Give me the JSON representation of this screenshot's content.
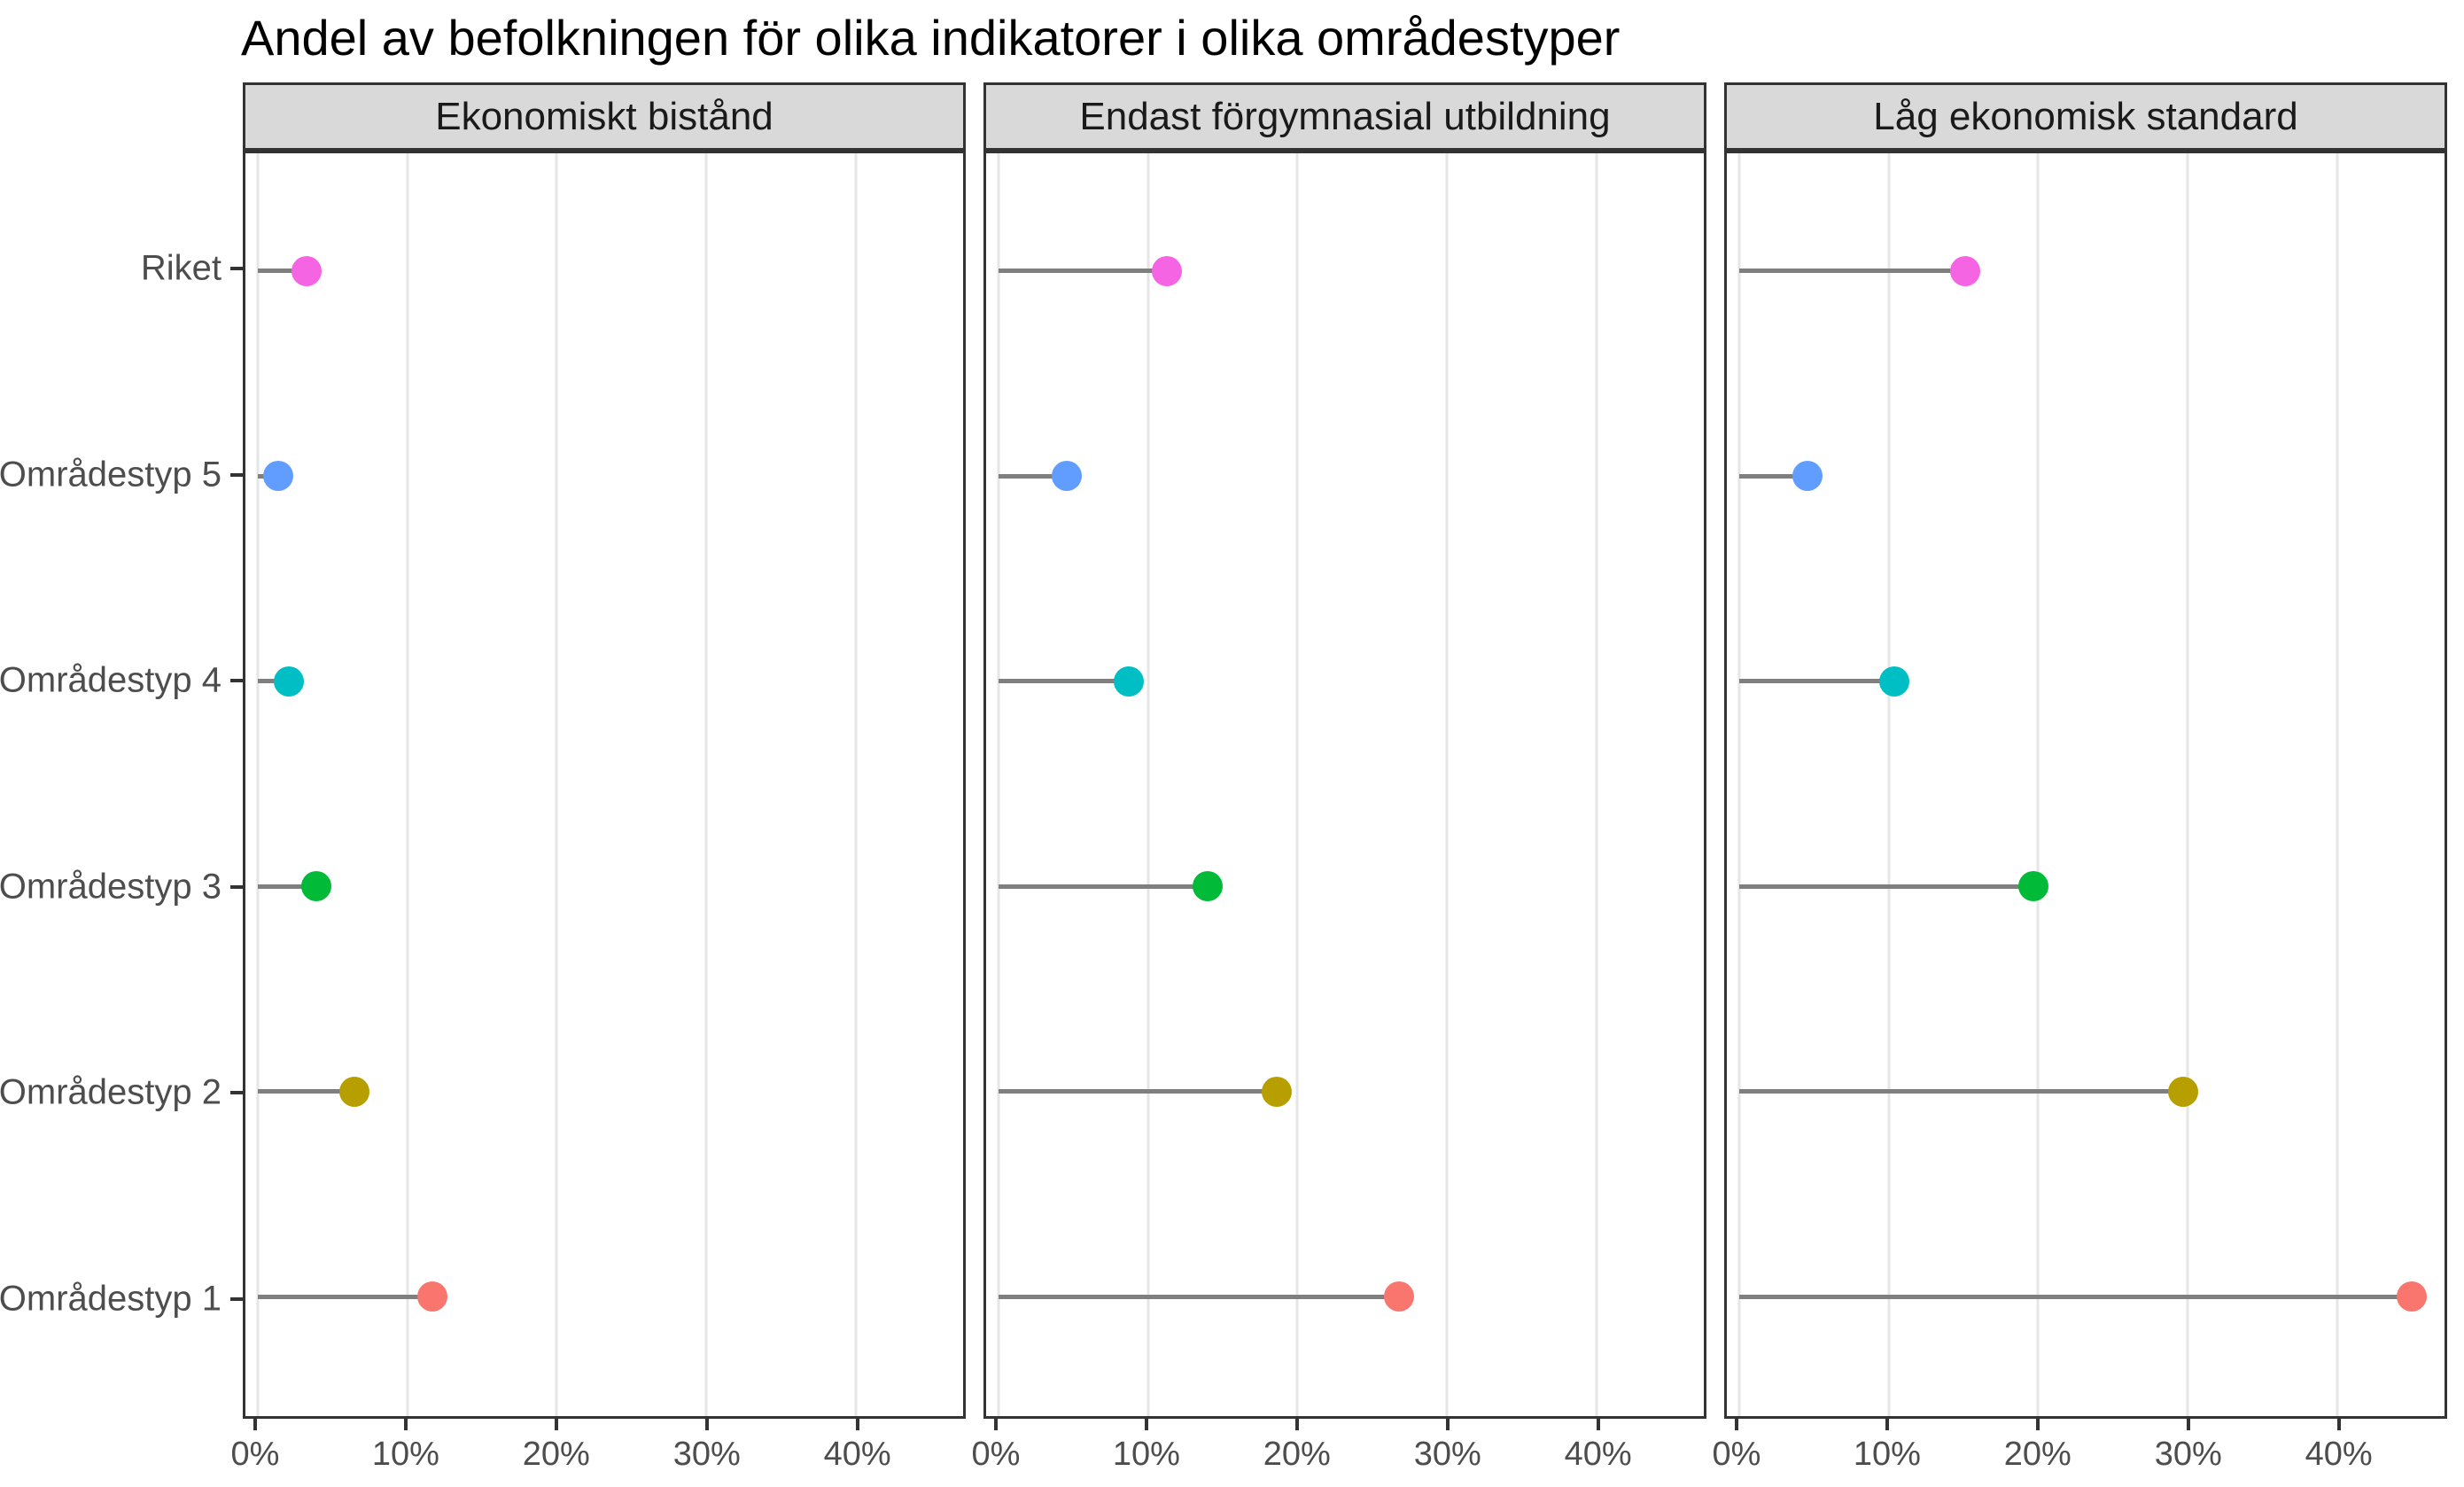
{
  "title": "Andel av befolkningen för olika indikatorer i olika områdestyper",
  "chart_data": {
    "type": "lollipop",
    "orientation": "horizontal",
    "legend": "none",
    "grid": "vertical-major-only",
    "categories": [
      "Riket",
      "Områdestyp 5",
      "Områdestyp 4",
      "Områdestyp 3",
      "Områdestyp 2",
      "Områdestyp 1"
    ],
    "category_colors": [
      "#F564E3",
      "#619CFF",
      "#00BFC4",
      "#00BA38",
      "#B79F00",
      "#F8766D"
    ],
    "facets": [
      {
        "label": "Ekonomiskt bistånd",
        "values": [
          3.3,
          1.4,
          2.1,
          3.9,
          6.5,
          11.7
        ]
      },
      {
        "label": "Endast förgymnasial utbildning",
        "values": [
          11.3,
          4.6,
          8.7,
          14.0,
          18.6,
          26.8
        ]
      },
      {
        "label": "Låg ekonomisk standard",
        "values": [
          15.1,
          4.6,
          10.4,
          19.7,
          29.7,
          45.0
        ]
      }
    ],
    "xlabel": "",
    "ylabel": "",
    "x_ticks": [
      0,
      10,
      20,
      30,
      40
    ],
    "x_tick_labels": [
      "0%",
      "10%",
      "20%",
      "30%",
      "40%"
    ],
    "xlim": [
      -0.82,
      47.2
    ],
    "style_colors": {
      "strip_fill": "#D9D9D9",
      "panel_border": "#333333",
      "gridline": "#E6E6E6",
      "stem": "#7F7F7F",
      "axis_text": "#4D4D4D",
      "title_text": "#000000"
    }
  }
}
